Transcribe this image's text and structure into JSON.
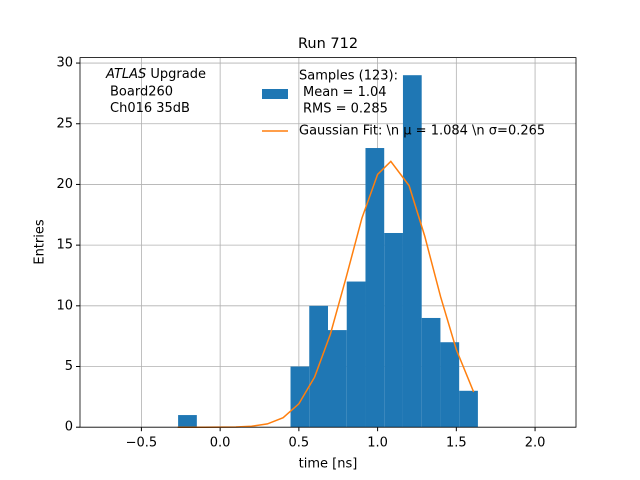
{
  "chart_data": {
    "type": "histogram",
    "title": "Run 712",
    "xlabel": "time [ns]",
    "ylabel": "Entries",
    "bins": [
      -0.267,
      -0.148,
      -0.029,
      0.09,
      0.209,
      0.328,
      0.447,
      0.566,
      0.685,
      0.804,
      0.923,
      1.042,
      1.161,
      1.28,
      1.399,
      1.518,
      1.637
    ],
    "series": [
      {
        "name": [
          "Samples (123):",
          "Mean = 1.04",
          "RMS = 0.285"
        ],
        "color": "#1f77b4",
        "values": [
          1,
          0,
          0,
          0,
          0,
          0,
          5,
          10,
          8,
          12,
          23,
          16,
          29,
          9,
          7,
          3
        ]
      },
      {
        "name": "Gaussian Fit: \\n μ = 1.084 \\n σ=0.265",
        "type": "line",
        "color": "#ff7f0e",
        "x": [
          -0.27,
          -0.2,
          -0.1,
          0.0,
          0.1,
          0.2,
          0.3,
          0.4,
          0.5,
          0.6,
          0.7,
          0.8,
          0.9,
          1.0,
          1.084,
          1.2,
          1.3,
          1.4,
          1.5,
          1.61
        ],
        "values": [
          0,
          0,
          0,
          0.005,
          0.02,
          0.08,
          0.27,
          0.78,
          1.93,
          4.13,
          7.66,
          12.33,
          17.21,
          20.83,
          21.9,
          19.9,
          15.71,
          10.75,
          6.39,
          2.9
        ]
      }
    ],
    "annotation": {
      "italic": "ATLAS",
      "rest": " Upgrade",
      "lines": [
        "Board260",
        "Ch016 35dB"
      ]
    },
    "xlim": [
      -0.89,
      2.26
    ],
    "ylim": [
      0,
      30.45
    ],
    "xticks": [
      {
        "value": -0.5,
        "label": "−0.5"
      },
      {
        "value": 0,
        "label": "0.0"
      },
      {
        "value": 0.5,
        "label": "0.5"
      },
      {
        "value": 1,
        "label": "1.0"
      },
      {
        "value": 1.5,
        "label": "1.5"
      },
      {
        "value": 2,
        "label": "2.0"
      }
    ],
    "yticks": [
      0,
      5,
      10,
      15,
      20,
      25,
      30
    ],
    "grid": true
  }
}
